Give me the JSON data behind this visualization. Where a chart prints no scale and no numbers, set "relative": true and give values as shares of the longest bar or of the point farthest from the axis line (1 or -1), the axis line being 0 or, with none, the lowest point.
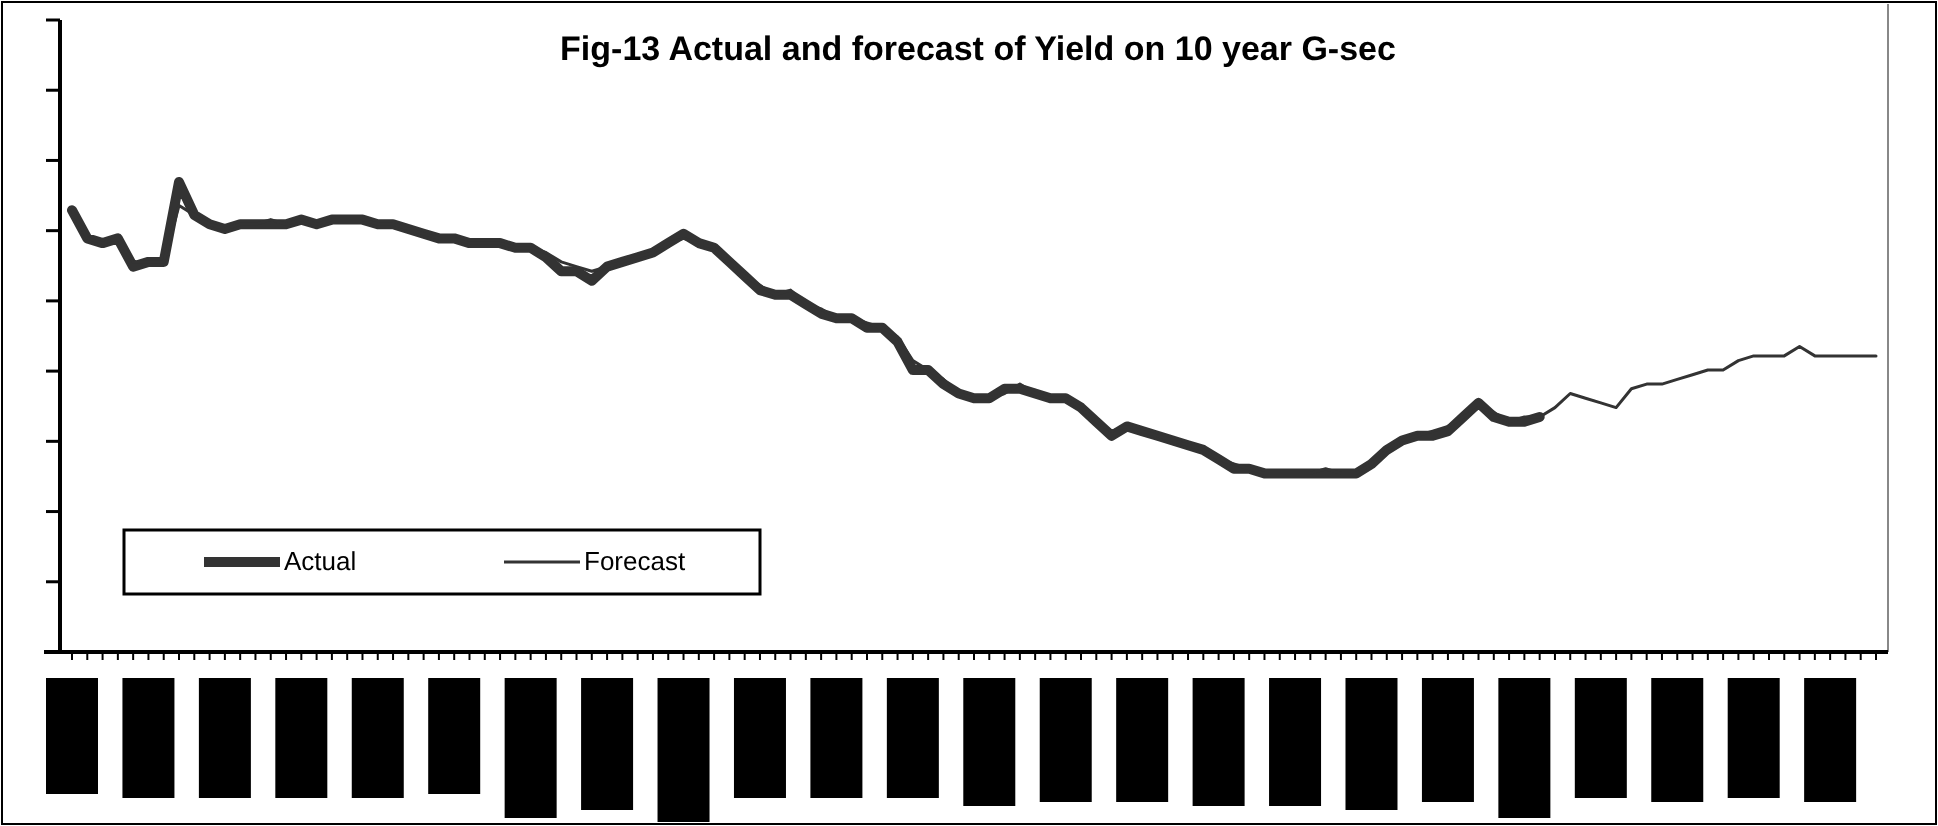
{
  "chart_data": {
    "type": "line",
    "title": "Fig-13 Actual and forecast of Yield on 10 year G-sec",
    "relative": true,
    "legend": "bottom left",
    "line_style": "solid",
    "categories": [
      null,
      null,
      null,
      null,
      null,
      null,
      null,
      null,
      null,
      null,
      null,
      null,
      null,
      null,
      null,
      null,
      null,
      null,
      null,
      null,
      null,
      null,
      null,
      null,
      null,
      null,
      null,
      null,
      null,
      null,
      null,
      null,
      null,
      null,
      null,
      null,
      null,
      null,
      null,
      null,
      null,
      null,
      null,
      null,
      null,
      null,
      null,
      null,
      null,
      null,
      null,
      null,
      null,
      null,
      null,
      null,
      null,
      null,
      null,
      null,
      null,
      null,
      null,
      null,
      null,
      null,
      null,
      null,
      null,
      null,
      null,
      null,
      null,
      null,
      null,
      null,
      null,
      null,
      null,
      null,
      null,
      null,
      null,
      null,
      null,
      null,
      null,
      null,
      null,
      null,
      null,
      null,
      null,
      null,
      null,
      null,
      null,
      null,
      null,
      null,
      null,
      null,
      null,
      null,
      null,
      null,
      null,
      null,
      null,
      null,
      null,
      null,
      null,
      null,
      null,
      null,
      null,
      null,
      null
    ],
    "series": [
      {
        "name": "Actual",
        "color": "#333333",
        "values": [
          0.94,
          0.88,
          0.87,
          0.88,
          0.82,
          0.83,
          0.83,
          1.0,
          0.93,
          0.91,
          0.9,
          0.91,
          0.91,
          0.91,
          0.91,
          0.92,
          0.91,
          0.92,
          0.92,
          0.92,
          0.91,
          0.91,
          0.9,
          0.89,
          0.88,
          0.88,
          0.87,
          0.87,
          0.87,
          0.86,
          0.86,
          0.84,
          0.81,
          0.81,
          0.79,
          0.82,
          0.83,
          0.84,
          0.85,
          0.87,
          0.89,
          0.87,
          0.86,
          0.83,
          0.8,
          0.77,
          0.76,
          0.76,
          0.74,
          0.72,
          0.71,
          0.71,
          0.69,
          0.69,
          0.66,
          0.6,
          0.6,
          0.57,
          0.55,
          0.54,
          0.54,
          0.56,
          0.56,
          0.55,
          0.54,
          0.54,
          0.52,
          0.49,
          0.46,
          0.48,
          0.47,
          0.46,
          0.45,
          0.44,
          0.43,
          0.41,
          0.39,
          0.39,
          0.38,
          0.38,
          0.38,
          0.38,
          0.38,
          0.38,
          0.38,
          0.4,
          0.43,
          0.45,
          0.46,
          0.46,
          0.47,
          0.5,
          0.53,
          0.5,
          0.49,
          0.49,
          0.5,
          null,
          null,
          null,
          null,
          null,
          null,
          null,
          null,
          null,
          null,
          null,
          null,
          null,
          null,
          null,
          null,
          null,
          null,
          null,
          null,
          null,
          null
        ]
      },
      {
        "name": "Forecast",
        "color": "#333333",
        "values": [
          0.94,
          0.88,
          0.87,
          0.88,
          0.83,
          0.83,
          0.83,
          0.95,
          0.93,
          0.91,
          0.9,
          0.91,
          0.91,
          0.92,
          0.91,
          0.92,
          0.91,
          0.92,
          0.92,
          0.92,
          0.91,
          0.91,
          0.9,
          0.89,
          0.88,
          0.88,
          0.87,
          0.87,
          0.87,
          0.86,
          0.86,
          0.85,
          0.83,
          0.82,
          0.81,
          0.82,
          0.83,
          0.84,
          0.85,
          0.87,
          0.88,
          0.87,
          0.86,
          0.83,
          0.8,
          0.78,
          0.76,
          0.77,
          0.74,
          0.73,
          0.71,
          0.71,
          0.7,
          0.69,
          0.67,
          0.62,
          0.6,
          0.58,
          0.55,
          0.54,
          0.54,
          0.55,
          0.57,
          0.55,
          0.54,
          0.54,
          0.52,
          0.49,
          0.47,
          0.48,
          0.47,
          0.46,
          0.45,
          0.44,
          0.43,
          0.41,
          0.4,
          0.39,
          0.38,
          0.38,
          0.38,
          0.38,
          0.39,
          0.38,
          0.38,
          0.4,
          0.43,
          0.45,
          0.46,
          0.47,
          0.48,
          0.5,
          0.52,
          0.51,
          0.49,
          0.5,
          0.5,
          0.52,
          0.55,
          0.54,
          0.53,
          0.52,
          0.56,
          0.57,
          0.57,
          0.58,
          0.59,
          0.6,
          0.6,
          0.62,
          0.63,
          0.63,
          0.63,
          0.65,
          0.63,
          0.63,
          0.63,
          0.63,
          0.63
        ]
      }
    ]
  }
}
